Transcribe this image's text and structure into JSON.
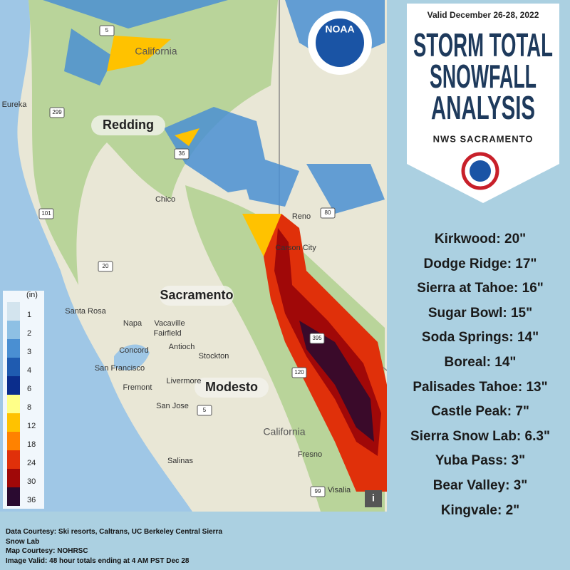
{
  "header": {
    "valid": "Valid December 26-28, 2022",
    "title": [
      "STORM TOTAL",
      "SNOWFALL",
      "ANALYSIS"
    ],
    "office": "NWS SACRAMENTO"
  },
  "totals": [
    "Kirkwood: 20\"",
    "Dodge Ridge: 17\"",
    "Sierra at Tahoe: 16\"",
    "Sugar Bowl: 15\"",
    "Soda Springs: 14\"",
    "Boreal: 14\"",
    "Palisades Tahoe: 13\"",
    "Castle Peak: 7\"",
    "Sierra Snow Lab: 6.3\"",
    "Yuba Pass: 3\"",
    "Bear Valley: 3\"",
    "Kingvale: 2\""
  ],
  "legend": {
    "unit": "(in)",
    "items": [
      {
        "label": 1,
        "color": "#d3e4ee"
      },
      {
        "label": 2,
        "color": "#8ec0e4"
      },
      {
        "label": 3,
        "color": "#4a8fd2"
      },
      {
        "label": 4,
        "color": "#1f5bb0"
      },
      {
        "label": 6,
        "color": "#0b2d8c"
      },
      {
        "label": 8,
        "color": "#ffff88"
      },
      {
        "label": 12,
        "color": "#ffc200"
      },
      {
        "label": 18,
        "color": "#ff8200"
      },
      {
        "label": 24,
        "color": "#e0300a"
      },
      {
        "label": 30,
        "color": "#a00808"
      },
      {
        "label": 36,
        "color": "#2a0a30"
      }
    ]
  },
  "map": {
    "cities": [
      "Redding",
      "Sacramento",
      "Modesto"
    ],
    "towns": [
      "Eureka",
      "Chico",
      "Reno",
      "Carson City",
      "Santa Rosa",
      "Napa",
      "Vacaville",
      "Fairfield",
      "Concord",
      "Antioch",
      "Stockton",
      "San Francisco",
      "Fremont",
      "Livermore",
      "San Jose",
      "Fresno",
      "Salinas",
      "Visalia"
    ],
    "state": [
      "California",
      "California"
    ],
    "highways": [
      "5",
      "299",
      "36",
      "101",
      "20",
      "80",
      "395",
      "120",
      "5",
      "99"
    ],
    "logo": "NOAA"
  },
  "credits": [
    "Data Courtesy: Ski resorts, Caltrans, UC Berkeley Central Sierra",
    "Snow Lab",
    "Map Courtesy: NOHRSC",
    "Image Valid: 48 hour totals ending at 4 AM PST Dec 28"
  ]
}
